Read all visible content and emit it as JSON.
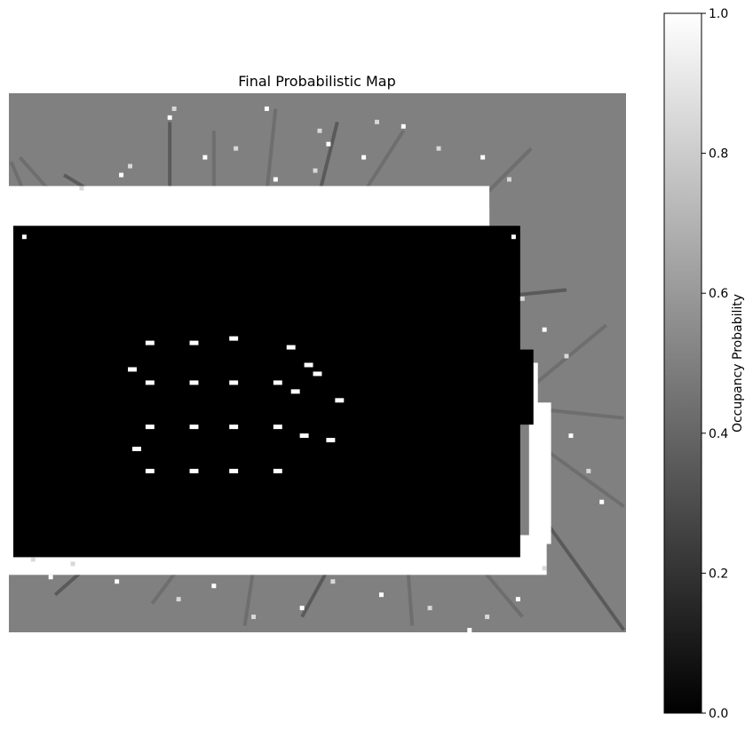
{
  "chart_data": {
    "type": "heatmap",
    "title": "Final Probabilistic Map",
    "xlabel": "",
    "ylabel": "",
    "axes_visible": false,
    "colormap": "gray",
    "colors": {
      "low": "#000000",
      "high": "#ffffff",
      "unknown": "#808080"
    },
    "unknown_value": 0.5,
    "grid_size": [
      140,
      122
    ],
    "colorbar": {
      "label": "Occupancy Probability",
      "range": [
        0,
        1
      ],
      "ticks": [
        0.0,
        0.2,
        0.4,
        0.6,
        0.8,
        1.0
      ],
      "tick_labels": [
        "0.0",
        "0.2",
        "0.4",
        "0.6",
        "0.8",
        "1.0"
      ]
    },
    "free_regions": [
      {
        "x": [
          1,
          115
        ],
        "y": [
          30,
          104
        ],
        "value": 0.0
      },
      {
        "x": [
          100,
          118
        ],
        "y": [
          58,
          74
        ],
        "value": 0.0
      }
    ],
    "occupied_walls": [
      {
        "x": [
          0,
          108
        ],
        "y": [
          21,
          30
        ],
        "value": 1.0
      },
      {
        "x": [
          0,
          3
        ],
        "y": [
          27,
          105
        ],
        "value": 1.0
      },
      {
        "x": [
          0,
          121
        ],
        "y": [
          100,
          108
        ],
        "value": 1.0
      },
      {
        "x": [
          101,
          108
        ],
        "y": [
          26,
          62
        ],
        "value": 1.0
      },
      {
        "x": [
          118,
          122
        ],
        "y": [
          70,
          101
        ],
        "value": 1.0
      },
      {
        "x": [
          104,
          119
        ],
        "y": [
          61,
          70
        ],
        "value": 1.0
      }
    ],
    "obstacles": [
      [
        31,
        56
      ],
      [
        41,
        56
      ],
      [
        50,
        55
      ],
      [
        31,
        65
      ],
      [
        41,
        65
      ],
      [
        50,
        65
      ],
      [
        60,
        65
      ],
      [
        31,
        75
      ],
      [
        41,
        75
      ],
      [
        50,
        75
      ],
      [
        60,
        75
      ],
      [
        31,
        85
      ],
      [
        41,
        85
      ],
      [
        50,
        85
      ],
      [
        60,
        85
      ],
      [
        63,
        57
      ],
      [
        67,
        61
      ],
      [
        69,
        63
      ],
      [
        64,
        67
      ],
      [
        74,
        69
      ],
      [
        66,
        77
      ],
      [
        72,
        78
      ],
      [
        28,
        80
      ],
      [
        27,
        62
      ]
    ],
    "scatter_speckles": [
      [
        36,
        5
      ],
      [
        37,
        3
      ],
      [
        58,
        3
      ],
      [
        70,
        8
      ],
      [
        72,
        11
      ],
      [
        83,
        6
      ],
      [
        89,
        7
      ],
      [
        97,
        12
      ],
      [
        107,
        14
      ],
      [
        113,
        19
      ],
      [
        114,
        32
      ],
      [
        116,
        46
      ],
      [
        121,
        53
      ],
      [
        126,
        59
      ],
      [
        127,
        77
      ],
      [
        131,
        85
      ],
      [
        134,
        92
      ],
      [
        121,
        107
      ],
      [
        115,
        114
      ],
      [
        108,
        118
      ],
      [
        104,
        121
      ],
      [
        95,
        116
      ],
      [
        84,
        113
      ],
      [
        73,
        110
      ],
      [
        66,
        116
      ],
      [
        55,
        118
      ],
      [
        46,
        111
      ],
      [
        38,
        114
      ],
      [
        24,
        110
      ],
      [
        14,
        106
      ],
      [
        9,
        109
      ],
      [
        5,
        105
      ],
      [
        3,
        32
      ],
      [
        16,
        21
      ],
      [
        25,
        18
      ],
      [
        27,
        16
      ],
      [
        44,
        14
      ],
      [
        51,
        12
      ],
      [
        60,
        19
      ],
      [
        69,
        17
      ],
      [
        80,
        14
      ]
    ],
    "dark_rays": [
      [
        [
          36,
          25
        ],
        [
          36,
          6
        ]
      ],
      [
        [
          46,
          23
        ],
        [
          46,
          8
        ]
      ],
      [
        [
          58,
          22
        ],
        [
          60,
          3
        ]
      ],
      [
        [
          70,
          22
        ],
        [
          74,
          6
        ]
      ],
      [
        [
          80,
          22
        ],
        [
          89,
          8
        ]
      ],
      [
        [
          104,
          26
        ],
        [
          118,
          12
        ]
      ],
      [
        [
          106,
          46
        ],
        [
          126,
          44
        ]
      ],
      [
        [
          118,
          66
        ],
        [
          135,
          52
        ]
      ],
      [
        [
          121,
          80
        ],
        [
          139,
          93
        ]
      ],
      [
        [
          121,
          96
        ],
        [
          139,
          121
        ]
      ],
      [
        [
          105,
          105
        ],
        [
          116,
          118
        ]
      ],
      [
        [
          90,
          107
        ],
        [
          91,
          120
        ]
      ],
      [
        [
          72,
          107
        ],
        [
          66,
          118
        ]
      ],
      [
        [
          55,
          107
        ],
        [
          53,
          120
        ]
      ],
      [
        [
          38,
          107
        ],
        [
          32,
          115
        ]
      ],
      [
        [
          18,
          106
        ],
        [
          10,
          113
        ]
      ],
      [
        [
          3,
          22
        ],
        [
          0,
          15
        ]
      ],
      [
        [
          10,
          23
        ],
        [
          2,
          14
        ]
      ],
      [
        [
          22,
          24
        ],
        [
          12,
          18
        ]
      ],
      [
        [
          110,
          70
        ],
        [
          139,
          73
        ]
      ]
    ]
  }
}
